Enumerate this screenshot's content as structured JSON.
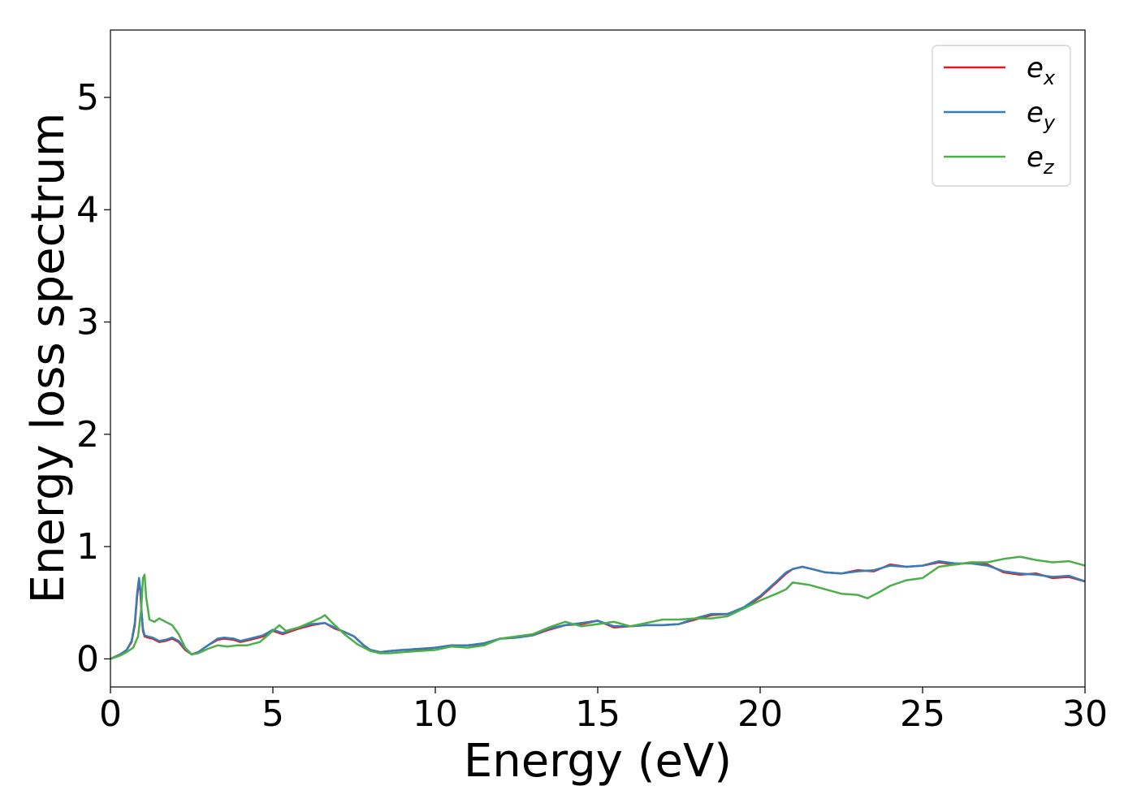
{
  "chart_data": {
    "type": "line",
    "xlabel": "Energy (eV)",
    "ylabel": "Energy loss spectrum",
    "xlim": [
      0,
      30
    ],
    "ylim": [
      -0.25,
      5.6
    ],
    "xticks": [
      0,
      5,
      10,
      15,
      20,
      25,
      30
    ],
    "yticks": [
      0,
      1,
      2,
      3,
      4,
      5
    ],
    "grid": false,
    "legend_position": "top-right",
    "series": [
      {
        "name": "e",
        "subscript": "x",
        "color": "#e41a1c",
        "x": [
          0,
          0.3,
          0.5,
          0.65,
          0.75,
          0.82,
          0.88,
          0.92,
          0.96,
          1.0,
          1.05,
          1.15,
          1.3,
          1.5,
          1.7,
          1.9,
          2.1,
          2.3,
          2.5,
          2.7,
          3.0,
          3.3,
          3.5,
          3.8,
          4.0,
          4.3,
          4.7,
          5.0,
          5.3,
          5.5,
          5.8,
          6.2,
          6.6,
          6.9,
          7.2,
          7.5,
          7.8,
          8.0,
          8.3,
          8.6,
          9.0,
          9.5,
          10.0,
          10.5,
          11.0,
          11.5,
          12.0,
          12.5,
          13.0,
          13.5,
          14.0,
          14.5,
          15.0,
          15.5,
          16.0,
          16.5,
          17.0,
          17.5,
          18.0,
          18.5,
          19.0,
          19.5,
          20.0,
          20.5,
          20.8,
          21.0,
          21.3,
          21.6,
          22.0,
          22.5,
          23.0,
          23.5,
          24.0,
          24.5,
          25.0,
          25.5,
          26.0,
          26.5,
          27.0,
          27.5,
          28.0,
          28.5,
          29.0,
          29.5,
          30.0
        ],
        "values": [
          0.0,
          0.04,
          0.08,
          0.15,
          0.3,
          0.55,
          0.7,
          0.6,
          0.4,
          0.25,
          0.2,
          0.19,
          0.18,
          0.15,
          0.16,
          0.18,
          0.15,
          0.08,
          0.04,
          0.06,
          0.12,
          0.17,
          0.18,
          0.17,
          0.15,
          0.17,
          0.2,
          0.25,
          0.22,
          0.24,
          0.27,
          0.3,
          0.32,
          0.27,
          0.24,
          0.2,
          0.12,
          0.08,
          0.06,
          0.07,
          0.08,
          0.08,
          0.1,
          0.12,
          0.12,
          0.13,
          0.18,
          0.19,
          0.21,
          0.26,
          0.3,
          0.31,
          0.34,
          0.28,
          0.29,
          0.3,
          0.3,
          0.31,
          0.35,
          0.39,
          0.4,
          0.45,
          0.55,
          0.68,
          0.76,
          0.8,
          0.82,
          0.8,
          0.77,
          0.76,
          0.79,
          0.78,
          0.84,
          0.82,
          0.83,
          0.86,
          0.84,
          0.86,
          0.84,
          0.77,
          0.75,
          0.76,
          0.72,
          0.73,
          0.69
        ]
      },
      {
        "name": "e",
        "subscript": "y",
        "color": "#377eb8",
        "x": [
          0,
          0.3,
          0.5,
          0.65,
          0.75,
          0.82,
          0.88,
          0.92,
          0.96,
          1.0,
          1.05,
          1.15,
          1.3,
          1.5,
          1.7,
          1.9,
          2.1,
          2.3,
          2.5,
          2.7,
          3.0,
          3.3,
          3.5,
          3.8,
          4.0,
          4.3,
          4.7,
          5.0,
          5.3,
          5.5,
          5.8,
          6.2,
          6.6,
          6.9,
          7.2,
          7.5,
          7.8,
          8.0,
          8.3,
          8.6,
          9.0,
          9.5,
          10.0,
          10.5,
          11.0,
          11.5,
          12.0,
          12.5,
          13.0,
          13.5,
          14.0,
          14.5,
          15.0,
          15.5,
          16.0,
          16.5,
          17.0,
          17.5,
          18.0,
          18.5,
          19.0,
          19.5,
          20.0,
          20.5,
          20.8,
          21.0,
          21.3,
          21.6,
          22.0,
          22.5,
          23.0,
          23.5,
          24.0,
          24.5,
          25.0,
          25.5,
          26.0,
          26.5,
          27.0,
          27.5,
          28.0,
          28.5,
          29.0,
          29.5,
          30.0
        ],
        "values": [
          0.0,
          0.04,
          0.08,
          0.16,
          0.32,
          0.58,
          0.72,
          0.62,
          0.42,
          0.27,
          0.21,
          0.2,
          0.19,
          0.16,
          0.17,
          0.19,
          0.16,
          0.09,
          0.04,
          0.06,
          0.12,
          0.18,
          0.19,
          0.18,
          0.16,
          0.18,
          0.21,
          0.26,
          0.23,
          0.25,
          0.28,
          0.31,
          0.32,
          0.28,
          0.24,
          0.2,
          0.12,
          0.08,
          0.06,
          0.07,
          0.08,
          0.09,
          0.1,
          0.12,
          0.12,
          0.14,
          0.18,
          0.19,
          0.21,
          0.27,
          0.3,
          0.32,
          0.34,
          0.29,
          0.29,
          0.3,
          0.3,
          0.31,
          0.36,
          0.4,
          0.4,
          0.46,
          0.56,
          0.69,
          0.77,
          0.8,
          0.82,
          0.8,
          0.77,
          0.76,
          0.78,
          0.79,
          0.83,
          0.82,
          0.83,
          0.87,
          0.85,
          0.85,
          0.83,
          0.78,
          0.76,
          0.75,
          0.73,
          0.74,
          0.69
        ]
      },
      {
        "name": "e",
        "subscript": "z",
        "color": "#4daf4a",
        "x": [
          0,
          0.3,
          0.5,
          0.7,
          0.85,
          0.95,
          1.0,
          1.05,
          1.1,
          1.2,
          1.35,
          1.5,
          1.7,
          1.9,
          2.1,
          2.3,
          2.5,
          2.7,
          3.0,
          3.3,
          3.6,
          3.9,
          4.2,
          4.6,
          5.0,
          5.2,
          5.4,
          5.8,
          6.2,
          6.5,
          6.6,
          6.8,
          7.2,
          7.6,
          8.0,
          8.3,
          8.6,
          9.0,
          9.5,
          10.0,
          10.5,
          11.0,
          11.5,
          12.0,
          12.5,
          13.0,
          13.5,
          14.0,
          14.5,
          15.0,
          15.5,
          16.0,
          16.5,
          17.0,
          17.5,
          18.0,
          18.5,
          19.0,
          19.5,
          20.0,
          20.5,
          20.8,
          21.0,
          21.5,
          22.0,
          22.5,
          23.0,
          23.3,
          23.7,
          24.0,
          24.5,
          25.0,
          25.5,
          26.0,
          26.5,
          27.0,
          27.5,
          28.0,
          28.5,
          29.0,
          29.5,
          30.0
        ],
        "values": [
          0.0,
          0.03,
          0.06,
          0.1,
          0.2,
          0.45,
          0.72,
          0.75,
          0.55,
          0.35,
          0.33,
          0.36,
          0.33,
          0.3,
          0.22,
          0.1,
          0.04,
          0.05,
          0.09,
          0.12,
          0.11,
          0.12,
          0.12,
          0.15,
          0.25,
          0.3,
          0.25,
          0.28,
          0.33,
          0.37,
          0.39,
          0.33,
          0.22,
          0.13,
          0.07,
          0.05,
          0.05,
          0.06,
          0.07,
          0.08,
          0.11,
          0.1,
          0.12,
          0.18,
          0.2,
          0.22,
          0.28,
          0.33,
          0.29,
          0.31,
          0.33,
          0.29,
          0.32,
          0.35,
          0.35,
          0.36,
          0.36,
          0.38,
          0.45,
          0.52,
          0.58,
          0.62,
          0.68,
          0.66,
          0.62,
          0.58,
          0.57,
          0.54,
          0.6,
          0.65,
          0.7,
          0.72,
          0.82,
          0.84,
          0.86,
          0.86,
          0.89,
          0.91,
          0.88,
          0.86,
          0.87,
          0.83
        ]
      }
    ]
  }
}
